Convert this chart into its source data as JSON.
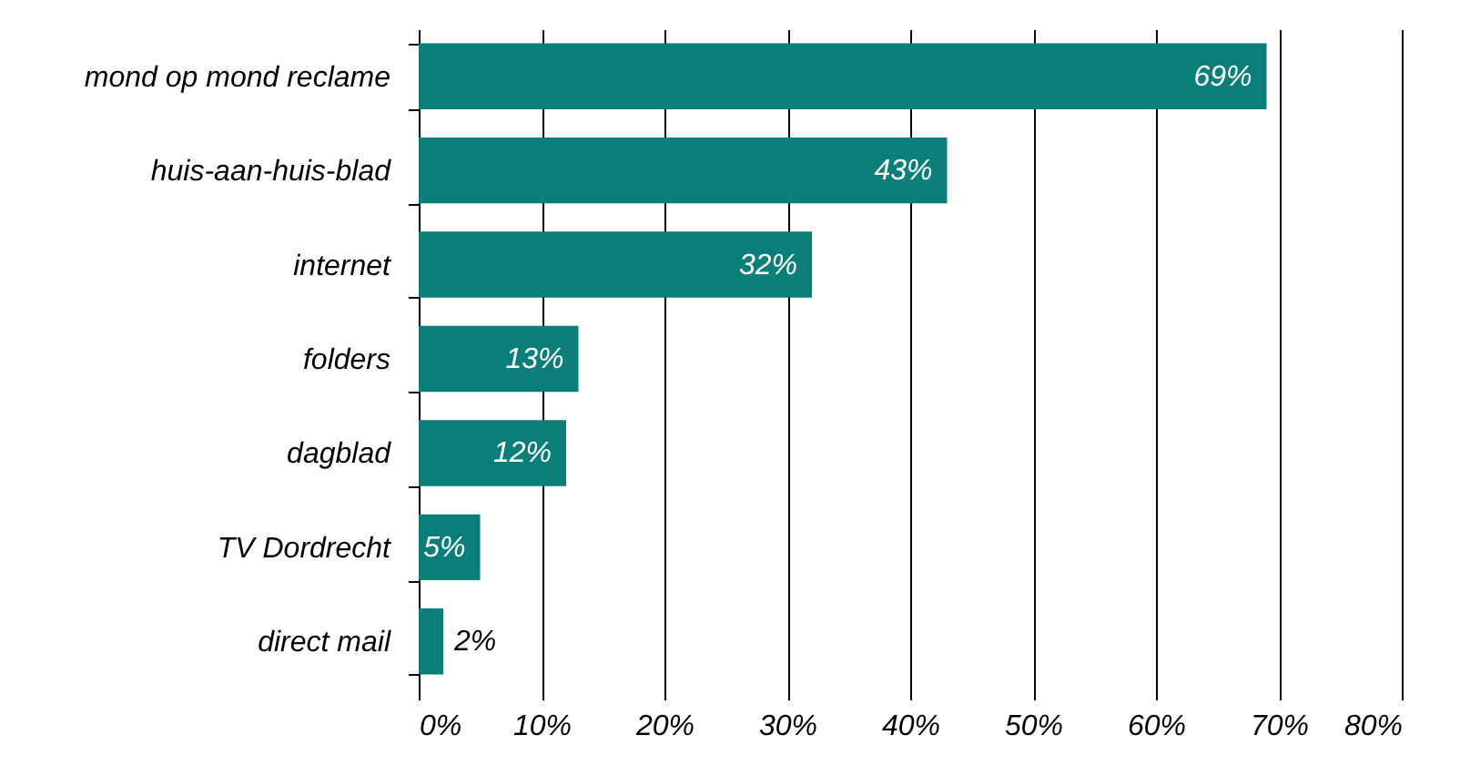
{
  "chart_data": {
    "type": "bar",
    "orientation": "horizontal",
    "categories": [
      "mond op mond reclame",
      "huis-aan-huis-blad",
      "internet",
      "folders",
      "dagblad",
      "TV Dordrecht",
      "direct mail"
    ],
    "values": [
      69,
      43,
      32,
      13,
      12,
      5,
      2
    ],
    "color": "#0a7f7a",
    "value_labels": [
      "69%",
      "43%",
      "32%",
      "13%",
      "12%",
      "5%",
      "2%"
    ],
    "xlim": [
      0,
      80
    ],
    "xticks": [
      {
        "value": 0,
        "label": "0%"
      },
      {
        "value": 10,
        "label": "10%"
      },
      {
        "value": 20,
        "label": "20%"
      },
      {
        "value": 30,
        "label": "30%"
      },
      {
        "value": 40,
        "label": "40%"
      },
      {
        "value": 50,
        "label": "50%"
      },
      {
        "value": 60,
        "label": "60%"
      },
      {
        "value": 70,
        "label": "70%"
      },
      {
        "value": 80,
        "label": "80%"
      }
    ],
    "grid": "x"
  }
}
